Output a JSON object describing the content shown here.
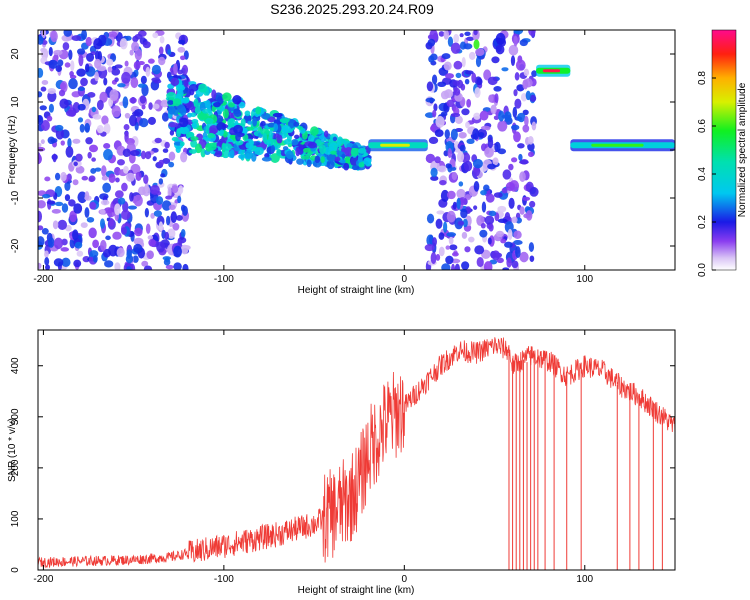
{
  "title": "S236.2025.293.20.24.R09",
  "chart_data": [
    {
      "type": "heatmap",
      "name": "spectrogram",
      "xlabel": "Height of straight line (km)",
      "ylabel": "Frequency (Hz)",
      "xlim": [
        -203,
        150
      ],
      "ylim": [
        -25,
        25
      ],
      "xticks": [
        -200,
        -100,
        0,
        100
      ],
      "yticks": [
        -20,
        -10,
        0,
        10,
        20
      ],
      "colorbar": {
        "label": "Normalized spectral amplitude",
        "range": [
          0,
          1
        ],
        "ticks": [
          "0.0",
          "0.2",
          "0.4",
          "0.6",
          "0.8"
        ]
      },
      "features": [
        {
          "description": "scattered noise",
          "x_range": [
            -203,
            -120
          ],
          "y_range": [
            -25,
            25
          ],
          "level": 0.2
        },
        {
          "description": "band converging to 0 Hz",
          "x_range": [
            -130,
            -20
          ],
          "y_center_start": 8,
          "y_center_end": -2,
          "level": 0.3
        },
        {
          "description": "line near 0 Hz",
          "x_range": [
            -20,
            13
          ],
          "y_center": 1,
          "level": 0.7
        },
        {
          "description": "noise band",
          "x_range": [
            13,
            72
          ],
          "y_range": [
            -25,
            25
          ],
          "level": 0.2
        },
        {
          "description": "bright spot",
          "x": 40,
          "y": 22,
          "level": 0.6
        },
        {
          "description": "line at 16 Hz",
          "x_range": [
            73,
            92
          ],
          "y_center": 16.5,
          "level": 0.95
        },
        {
          "description": "line at 1 Hz",
          "x_range": [
            92,
            150
          ],
          "y_center": 1,
          "level": 0.6
        }
      ]
    },
    {
      "type": "line",
      "name": "snr",
      "xlabel": "Height of straight line (km)",
      "ylabel": "SNR (10 * v/v)",
      "xlim": [
        -203,
        150
      ],
      "ylim": [
        0,
        470
      ],
      "xticks": [
        -200,
        -100,
        0,
        100
      ],
      "yticks": [
        0,
        100,
        200,
        300,
        400
      ],
      "color": "#ef3b36",
      "profile_x": [
        -203,
        -150,
        -130,
        -110,
        -90,
        -70,
        -50,
        -40,
        -30,
        -25,
        -20,
        -15,
        -10,
        0,
        10,
        20,
        30,
        40,
        50,
        58,
        60,
        70,
        80,
        90,
        100,
        110,
        120,
        130,
        140,
        150
      ],
      "profile_y": [
        15,
        20,
        25,
        40,
        55,
        70,
        90,
        110,
        140,
        170,
        230,
        260,
        290,
        320,
        360,
        400,
        430,
        425,
        440,
        430,
        400,
        420,
        410,
        380,
        400,
        390,
        360,
        340,
        310,
        280
      ],
      "dropout_x": [
        58,
        60,
        62,
        64,
        66,
        68,
        70,
        72,
        74,
        78,
        83,
        90,
        98,
        118,
        125,
        130,
        138,
        143
      ]
    }
  ]
}
